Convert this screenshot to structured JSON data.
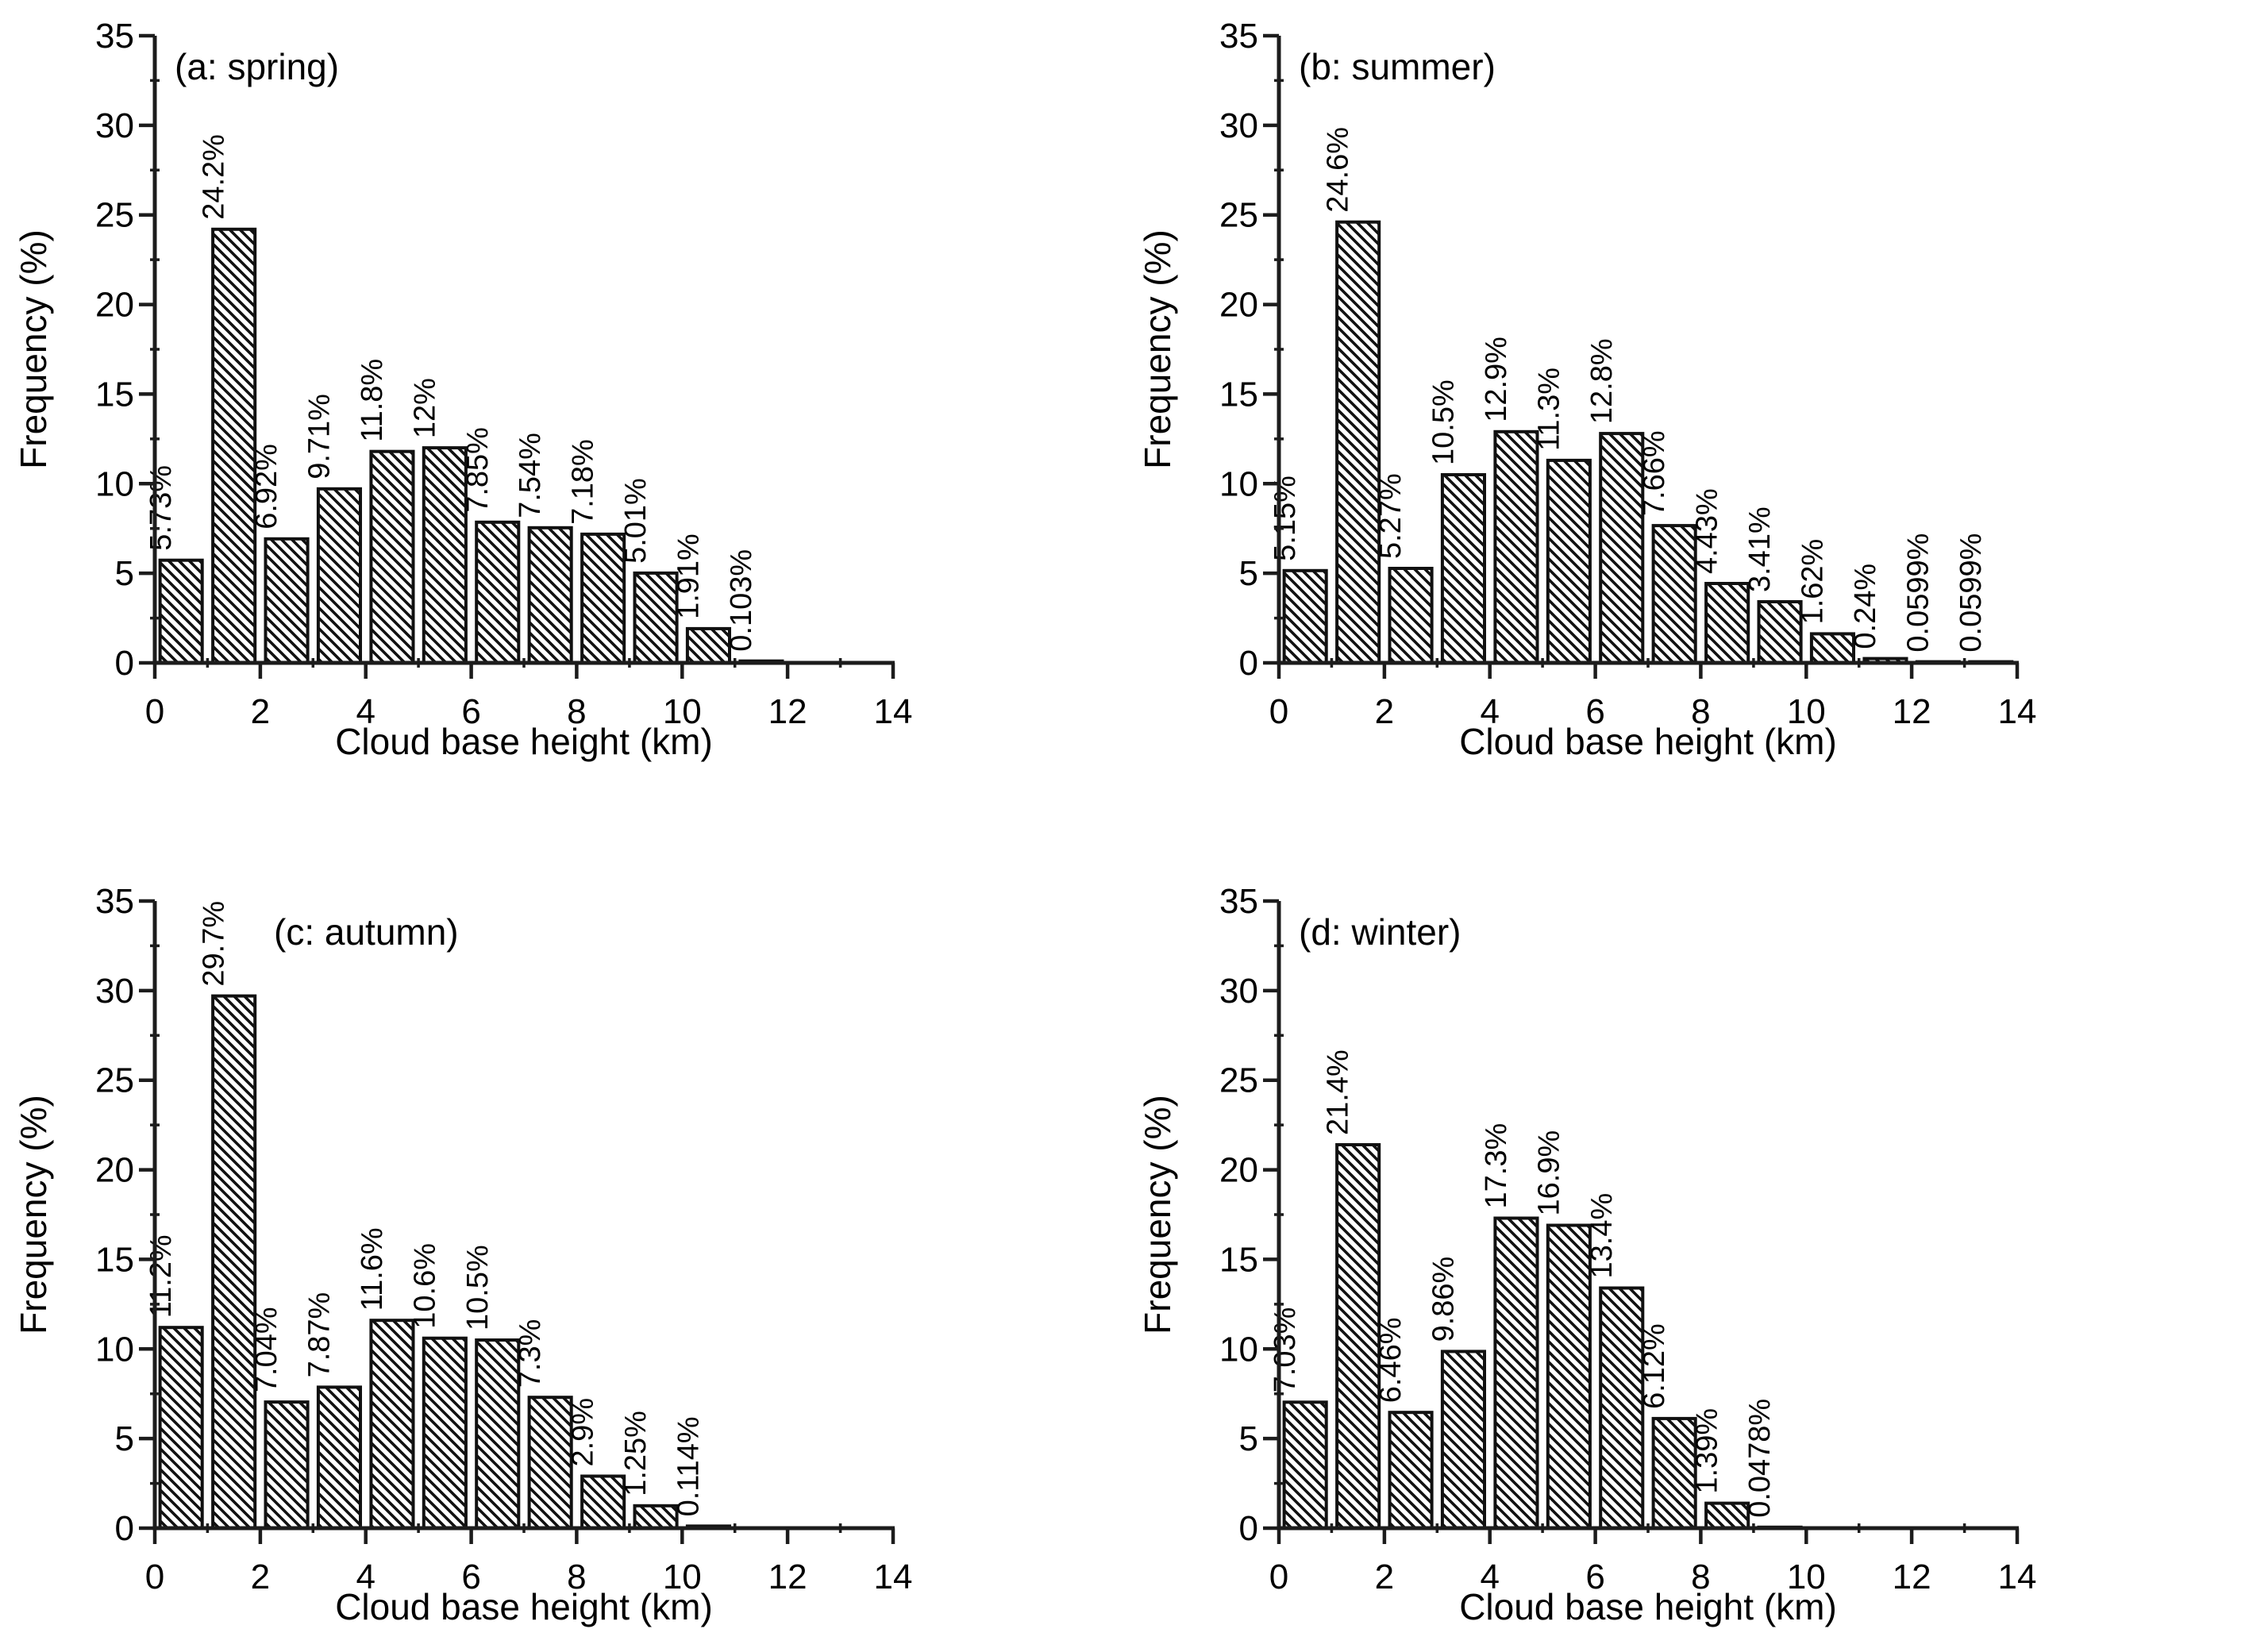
{
  "page": {
    "background": "#ffffff",
    "ink": "#111111",
    "axis_color": "#1c1c1c"
  },
  "chart_data": [
    {
      "id": "panel-a-spring",
      "type": "bar",
      "title": "(a: spring)",
      "title_x": 220,
      "xlabel": "Cloud base height (km)",
      "ylabel": "Frequency (%)",
      "xlim": [
        0,
        14
      ],
      "ylim": [
        0,
        35
      ],
      "xticks": [
        0,
        2,
        4,
        6,
        8,
        10,
        12,
        14
      ],
      "xminor": [
        1,
        3,
        5,
        7,
        9,
        11,
        13
      ],
      "yticks": [
        0,
        5,
        10,
        15,
        20,
        25,
        30,
        35
      ],
      "yminor": [
        2.5,
        7.5,
        12.5,
        17.5,
        22.5,
        27.5,
        32.5
      ],
      "bin_width": 1,
      "bin_starts": [
        0,
        1,
        2,
        3,
        4,
        5,
        6,
        7,
        8,
        9,
        10,
        11
      ],
      "values": [
        5.73,
        24.2,
        6.92,
        9.71,
        11.8,
        12,
        7.85,
        7.54,
        7.18,
        5.01,
        1.91,
        0.103
      ],
      "labels": [
        "5.73%",
        "24.2%",
        "6.92%",
        "9.71%",
        "11.8%",
        "12%",
        "7.85%",
        "7.54%",
        "7.18%",
        "5.01%",
        "1.91%",
        "0.103%"
      ],
      "grid": "off",
      "legend": "none"
    },
    {
      "id": "panel-b-summer",
      "type": "bar",
      "title": "(b: summer)",
      "title_x": 220,
      "xlabel": "Cloud base height (km)",
      "ylabel": "Frequency (%)",
      "xlim": [
        0,
        14
      ],
      "ylim": [
        0,
        35
      ],
      "xticks": [
        0,
        2,
        4,
        6,
        8,
        10,
        12,
        14
      ],
      "xminor": [
        1,
        3,
        5,
        7,
        9,
        11,
        13
      ],
      "yticks": [
        0,
        5,
        10,
        15,
        20,
        25,
        30,
        35
      ],
      "yminor": [
        2.5,
        7.5,
        12.5,
        17.5,
        22.5,
        27.5,
        32.5
      ],
      "bin_width": 1,
      "bin_starts": [
        0,
        1,
        2,
        3,
        4,
        5,
        6,
        7,
        8,
        9,
        10,
        11,
        12,
        13
      ],
      "values": [
        5.15,
        24.6,
        5.27,
        10.5,
        12.9,
        11.3,
        12.8,
        7.66,
        4.43,
        3.41,
        1.62,
        0.24,
        0.0599,
        0.0599
      ],
      "labels": [
        "5.15%",
        "24.6%",
        "5.27%",
        "10.5%",
        "12.9%",
        "11.3%",
        "12.8%",
        "7.66%",
        "4.43%",
        "3.41%",
        "1.62%",
        "0.24%",
        "0.0599%",
        "0.0599%"
      ],
      "grid": "off",
      "legend": "none"
    },
    {
      "id": "panel-c-autumn",
      "type": "bar",
      "title": "(c: autumn)",
      "title_x": 345,
      "xlabel": "Cloud base height (km)",
      "ylabel": "Frequency (%)",
      "xlim": [
        0,
        14
      ],
      "ylim": [
        0,
        35
      ],
      "xticks": [
        0,
        2,
        4,
        6,
        8,
        10,
        12,
        14
      ],
      "xminor": [
        1,
        3,
        5,
        7,
        9,
        11,
        13
      ],
      "yticks": [
        0,
        5,
        10,
        15,
        20,
        25,
        30,
        35
      ],
      "yminor": [
        2.5,
        7.5,
        12.5,
        17.5,
        22.5,
        27.5,
        32.5
      ],
      "bin_width": 1,
      "bin_starts": [
        0,
        1,
        2,
        3,
        4,
        5,
        6,
        7,
        8,
        9,
        10
      ],
      "values": [
        11.2,
        29.7,
        7.04,
        7.87,
        11.6,
        10.6,
        10.5,
        7.3,
        2.9,
        1.25,
        0.114
      ],
      "labels": [
        "11.2%",
        "29.7%",
        "7.04%",
        "7.87%",
        "11.6%",
        "10.6%",
        "10.5%",
        "7.3%",
        "2.9%",
        "1.25%",
        "0.114%"
      ],
      "grid": "off",
      "legend": "none"
    },
    {
      "id": "panel-d-winter",
      "type": "bar",
      "title": "(d: winter)",
      "title_x": 220,
      "xlabel": "Cloud base height (km)",
      "ylabel": "Frequency (%)",
      "xlim": [
        0,
        14
      ],
      "ylim": [
        0,
        35
      ],
      "xticks": [
        0,
        2,
        4,
        6,
        8,
        10,
        12,
        14
      ],
      "xminor": [
        1,
        3,
        5,
        7,
        9,
        11,
        13
      ],
      "yticks": [
        0,
        5,
        10,
        15,
        20,
        25,
        30,
        35
      ],
      "yminor": [
        2.5,
        7.5,
        12.5,
        17.5,
        22.5,
        27.5,
        32.5
      ],
      "bin_width": 1,
      "bin_starts": [
        0,
        1,
        2,
        3,
        4,
        5,
        6,
        7,
        8,
        9
      ],
      "values": [
        7.03,
        21.4,
        6.46,
        9.86,
        17.3,
        16.9,
        13.4,
        6.12,
        1.39,
        0.0478
      ],
      "labels": [
        "7.03%",
        "21.4%",
        "6.46%",
        "9.86%",
        "17.3%",
        "16.9%",
        "13.4%",
        "6.12%",
        "1.39%",
        "0.0478%"
      ],
      "grid": "off",
      "legend": "none"
    }
  ]
}
